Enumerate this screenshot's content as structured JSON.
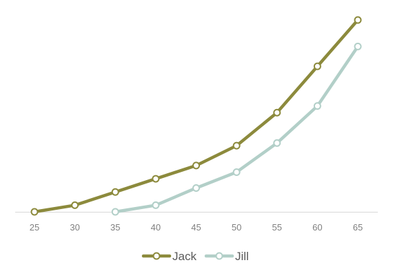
{
  "chart_data": {
    "type": "line",
    "x": [
      25,
      30,
      35,
      40,
      45,
      50,
      55,
      60,
      65
    ],
    "x_tick_labels": [
      "25",
      "30",
      "35",
      "40",
      "45",
      "50",
      "55",
      "60",
      "65"
    ],
    "ylim": [
      0,
      145
    ],
    "y_axis_visible": false,
    "grid": false,
    "legend_position": "bottom",
    "series": [
      {
        "name": "Jack",
        "color": "#8c8a3c",
        "values": [
          0,
          5,
          15,
          25,
          35,
          50,
          75,
          110,
          145
        ]
      },
      {
        "name": "Jill",
        "color": "#b2cfc8",
        "values": [
          null,
          null,
          0,
          5,
          18,
          30,
          52,
          80,
          125
        ]
      }
    ]
  }
}
